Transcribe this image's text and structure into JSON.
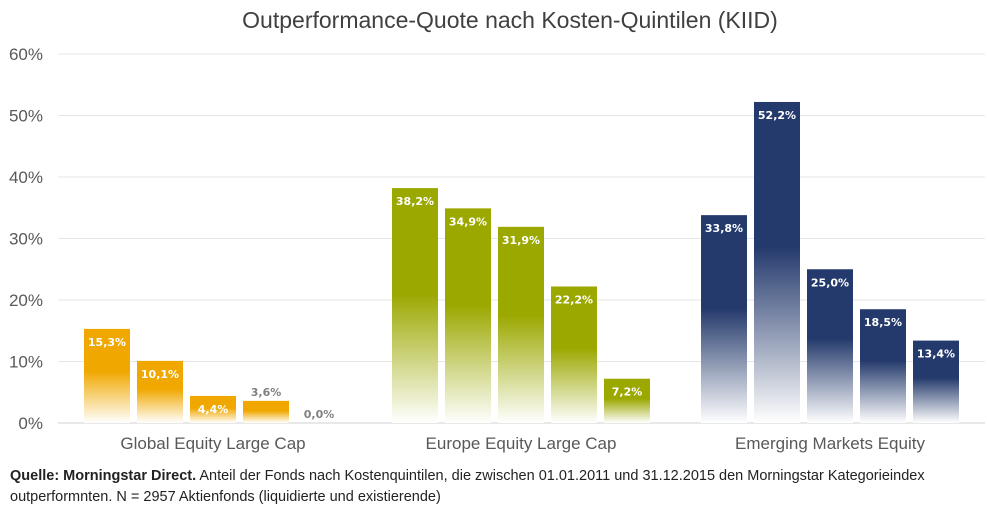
{
  "chart_data": {
    "type": "bar",
    "title": "Outperformance-Quote nach Kosten-Quintilen (KIID)",
    "categories": [
      "Global Equity Large Cap",
      "Europe Equity Large Cap",
      "Emerging Markets Equity"
    ],
    "series_per_category": 5,
    "values": [
      [
        15.3,
        10.1,
        4.4,
        3.6,
        0.0
      ],
      [
        38.2,
        34.9,
        31.9,
        22.2,
        7.2
      ],
      [
        33.8,
        52.2,
        25.0,
        18.5,
        13.4
      ]
    ],
    "labels": [
      [
        "15,3%",
        "10,1%",
        "4,4%",
        "3,6%",
        "0,0%"
      ],
      [
        "38,2%",
        "34,9%",
        "31,9%",
        "22,2%",
        "7,2%"
      ],
      [
        "33,8%",
        "52,2%",
        "25,0%",
        "18,5%",
        "13,4%"
      ]
    ],
    "colors": [
      "#F0A800",
      "#9BA800",
      "#243A6C"
    ],
    "ylim": [
      0,
      60
    ],
    "yticks": [
      0,
      10,
      20,
      30,
      40,
      50,
      60
    ],
    "ytick_labels": [
      "0%",
      "10%",
      "20%",
      "30%",
      "40%",
      "50%",
      "60%"
    ],
    "grid": true,
    "xlabel": "",
    "ylabel": ""
  },
  "footer": {
    "source_bold": "Quelle: Morningstar Direct.",
    "text": " Anteil der Fonds nach Kostenquintilen, die zwischen 01.01.2011 und 31.12.2015 den Morningstar Kategorieindex outperformnten. N = 2957 Aktienfonds (liquidierte und existierende)"
  }
}
